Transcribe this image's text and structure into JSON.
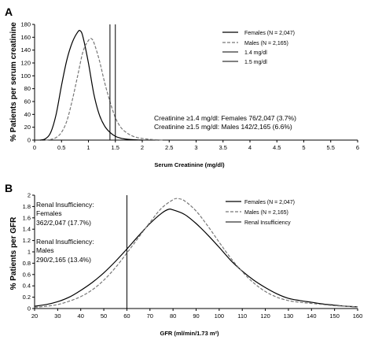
{
  "chart_data": [
    {
      "type": "line",
      "panel_label": "A",
      "xlabel": "Serum Creatinine (mg/dl)",
      "ylabel": "% Patients per serum creatinine",
      "xlim": [
        0,
        6
      ],
      "ylim": [
        0,
        180
      ],
      "x_ticks": [
        "0",
        "0.5",
        "1",
        "1.5",
        "2",
        "2.5",
        "3",
        "3.5",
        "4",
        "4.5",
        "5",
        "5.5",
        "6"
      ],
      "y_ticks": [
        "0",
        "20",
        "40",
        "60",
        "80",
        "100",
        "120",
        "140",
        "160",
        "180"
      ],
      "grid": false,
      "legend_position": "top-right",
      "series": [
        {
          "name": "Females (N = 2,047)",
          "color": "#000000",
          "style": "solid",
          "x": [
            0.1,
            0.2,
            0.3,
            0.4,
            0.5,
            0.6,
            0.7,
            0.8,
            0.85,
            0.9,
            1.0,
            1.1,
            1.2,
            1.3,
            1.4,
            1.5,
            1.6,
            1.7,
            1.8,
            1.9,
            2.0
          ],
          "y": [
            0,
            2,
            12,
            40,
            85,
            125,
            152,
            168,
            170,
            160,
            120,
            72,
            40,
            22,
            12,
            6,
            3,
            1.5,
            0.8,
            0.3,
            0
          ]
        },
        {
          "name": "Males (N = 2,165)",
          "color": "#777777",
          "style": "dashed",
          "x": [
            0.2,
            0.3,
            0.4,
            0.5,
            0.6,
            0.7,
            0.8,
            0.9,
            1.0,
            1.05,
            1.1,
            1.2,
            1.3,
            1.4,
            1.5,
            1.6,
            1.7,
            1.8,
            1.9,
            2.0,
            2.1,
            2.2,
            2.3,
            2.4
          ],
          "y": [
            0,
            1,
            4,
            12,
            30,
            62,
            100,
            138,
            155,
            158,
            152,
            125,
            90,
            60,
            35,
            20,
            12,
            7,
            4,
            2.5,
            1.5,
            0.8,
            0.4,
            0
          ]
        },
        {
          "name": "1.4 mg/dl",
          "color": "#000000",
          "style": "vertical",
          "x_value": 1.4
        },
        {
          "name": "1.5 mg/dl",
          "color": "#000000",
          "style": "vertical",
          "x_value": 1.5
        }
      ],
      "annotations": [
        "Creatinine ≥1.4 mg/dl: Females 76/2,047 (3.7%)",
        "Creatinine ≥1.5 mg/dl: Males 142/2,165 (6.6%)"
      ]
    },
    {
      "type": "line",
      "panel_label": "B",
      "xlabel": "GFR (ml/min/1.73 m²)",
      "ylabel": "% Patients per GFR",
      "xlim": [
        20,
        160
      ],
      "ylim": [
        0,
        2
      ],
      "x_ticks": [
        "20",
        "30",
        "40",
        "50",
        "60",
        "70",
        "80",
        "90",
        "100",
        "110",
        "120",
        "130",
        "140",
        "150",
        "160"
      ],
      "y_ticks": [
        "0",
        "0.2",
        "0.4",
        "0.6",
        "0.8",
        "1",
        "1.2",
        "1.4",
        "1.6",
        "1.8",
        "2"
      ],
      "grid": false,
      "legend_position": "top-right",
      "series": [
        {
          "name": "Females (N = 2,047)",
          "color": "#000000",
          "style": "solid",
          "x": [
            20,
            25,
            30,
            35,
            40,
            45,
            50,
            55,
            60,
            65,
            70,
            75,
            78,
            80,
            85,
            90,
            95,
            100,
            105,
            110,
            115,
            120,
            125,
            130,
            135,
            140,
            145,
            150,
            155,
            160
          ],
          "y": [
            0.04,
            0.07,
            0.12,
            0.2,
            0.32,
            0.46,
            0.63,
            0.83,
            1.05,
            1.28,
            1.5,
            1.68,
            1.75,
            1.74,
            1.66,
            1.5,
            1.3,
            1.08,
            0.85,
            0.66,
            0.5,
            0.37,
            0.26,
            0.18,
            0.14,
            0.11,
            0.08,
            0.06,
            0.04,
            0.03
          ]
        },
        {
          "name": "Males (N = 2,165)",
          "color": "#777777",
          "style": "dashed",
          "x": [
            20,
            25,
            30,
            35,
            40,
            45,
            50,
            55,
            60,
            65,
            70,
            75,
            80,
            82,
            85,
            90,
            95,
            100,
            105,
            110,
            115,
            120,
            125,
            130,
            135,
            140,
            145,
            150,
            155,
            160
          ],
          "y": [
            0.02,
            0.04,
            0.07,
            0.13,
            0.21,
            0.33,
            0.5,
            0.72,
            0.98,
            1.25,
            1.52,
            1.77,
            1.92,
            1.94,
            1.9,
            1.72,
            1.46,
            1.17,
            0.89,
            0.65,
            0.45,
            0.3,
            0.2,
            0.14,
            0.11,
            0.09,
            0.07,
            0.05,
            0.04,
            0.03
          ]
        },
        {
          "name": "Renal Insufficiency",
          "color": "#000000",
          "style": "vertical",
          "x_value": 60
        }
      ],
      "annotations": {
        "females_title_1": "Renal Insufficiency:",
        "females_title_2": "Females",
        "females_value": "362/2,047 (17.7%)",
        "males_title_1": "Renal Insufficiency:",
        "males_title_2": "Males",
        "males_value": "290/2,165 (13.4%)"
      }
    }
  ]
}
